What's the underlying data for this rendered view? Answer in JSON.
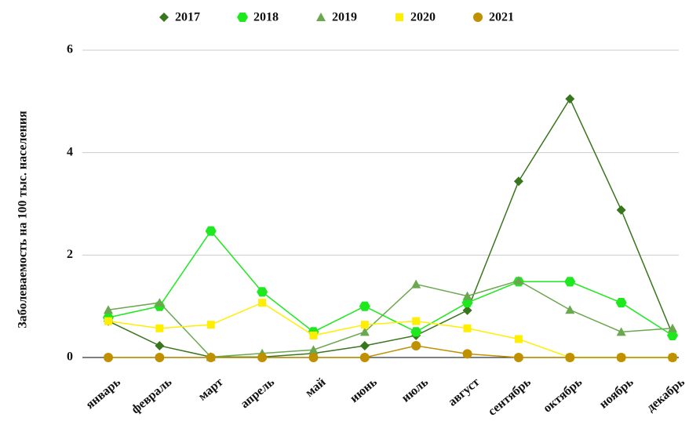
{
  "chart_data": {
    "type": "line",
    "y_label": "Заболеваемость на 100 тыс. населения",
    "categories": [
      "январь",
      "февраль",
      "март",
      "апрель",
      "май",
      "июнь",
      "июль",
      "август",
      "сентябрь",
      "октябрь",
      "ноябрь",
      "декабрь"
    ],
    "series": [
      {
        "name": "2017",
        "color": "#38761d",
        "marker": "diamond",
        "values": [
          0.71,
          0.23,
          0.01,
          0.01,
          0.08,
          0.23,
          0.43,
          0.92,
          3.44,
          5.05,
          2.88,
          0.45
        ]
      },
      {
        "name": "2018",
        "color": "#1ee81e",
        "marker": "hexagon",
        "values": [
          0.78,
          1.0,
          2.47,
          1.28,
          0.5,
          1.0,
          0.5,
          1.07,
          1.48,
          1.48,
          1.07,
          0.43
        ]
      },
      {
        "name": "2019",
        "color": "#6aa84f",
        "marker": "triangle",
        "values": [
          0.93,
          1.07,
          0.01,
          0.08,
          0.15,
          0.5,
          1.43,
          1.2,
          1.5,
          0.93,
          0.5,
          0.57
        ]
      },
      {
        "name": "2020",
        "color": "#ffee00",
        "marker": "square",
        "values": [
          0.71,
          0.57,
          0.64,
          1.07,
          0.43,
          0.64,
          0.71,
          0.57,
          0.36,
          0,
          0,
          0
        ]
      },
      {
        "name": "2021",
        "color": "#bf9000",
        "marker": "circle",
        "values": [
          0,
          0,
          0,
          0,
          0,
          0,
          0.23,
          0.07,
          0,
          0,
          0,
          0
        ]
      }
    ],
    "ylim": [
      0,
      6
    ],
    "yticks": [
      0,
      2,
      4,
      6
    ],
    "grid": true,
    "legend": "top"
  }
}
